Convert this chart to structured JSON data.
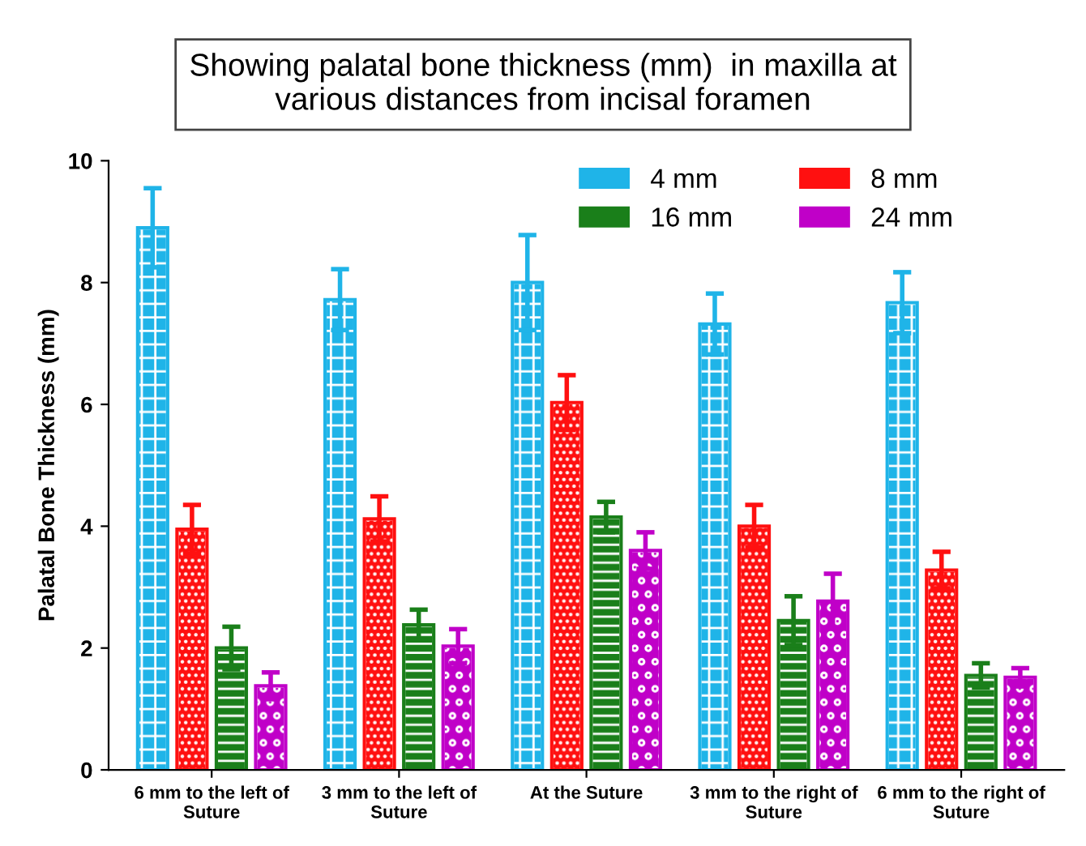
{
  "chart_data": {
    "type": "bar",
    "title": "Showing palatal bone thickness (mm)  in maxilla at\nvarious distances from incisal foramen",
    "ylabel": "Palatal Bone Thickness (mm)",
    "categories": [
      "6 mm to the left of\nSuture",
      "3 mm to the left of\nSuture",
      "At the Suture",
      "3 mm to the right of\nSuture",
      "6 mm to the right of\nSuture"
    ],
    "series": [
      {
        "name": "4 mm",
        "color": "#1fb4e8",
        "values": [
          8.9,
          7.72,
          8.0,
          7.32,
          7.67
        ],
        "errors": [
          0.65,
          0.5,
          0.78,
          0.5,
          0.5
        ]
      },
      {
        "name": "8 mm",
        "color": "#ff1010",
        "values": [
          3.95,
          4.12,
          6.03,
          4.0,
          3.28
        ],
        "errors": [
          0.4,
          0.37,
          0.45,
          0.35,
          0.3
        ]
      },
      {
        "name": "16 mm",
        "color": "#1a7f1a",
        "values": [
          2.0,
          2.38,
          4.15,
          2.45,
          1.55
        ],
        "errors": [
          0.35,
          0.25,
          0.25,
          0.4,
          0.2
        ]
      },
      {
        "name": "24 mm",
        "color": "#c000c8",
        "values": [
          1.38,
          2.03,
          3.6,
          2.77,
          1.52
        ],
        "errors": [
          0.22,
          0.28,
          0.3,
          0.45,
          0.15
        ]
      }
    ],
    "ylim": [
      0,
      10
    ],
    "yticks": [
      0,
      2,
      4,
      6,
      8,
      10
    ],
    "grid": false,
    "legend": "top right"
  }
}
